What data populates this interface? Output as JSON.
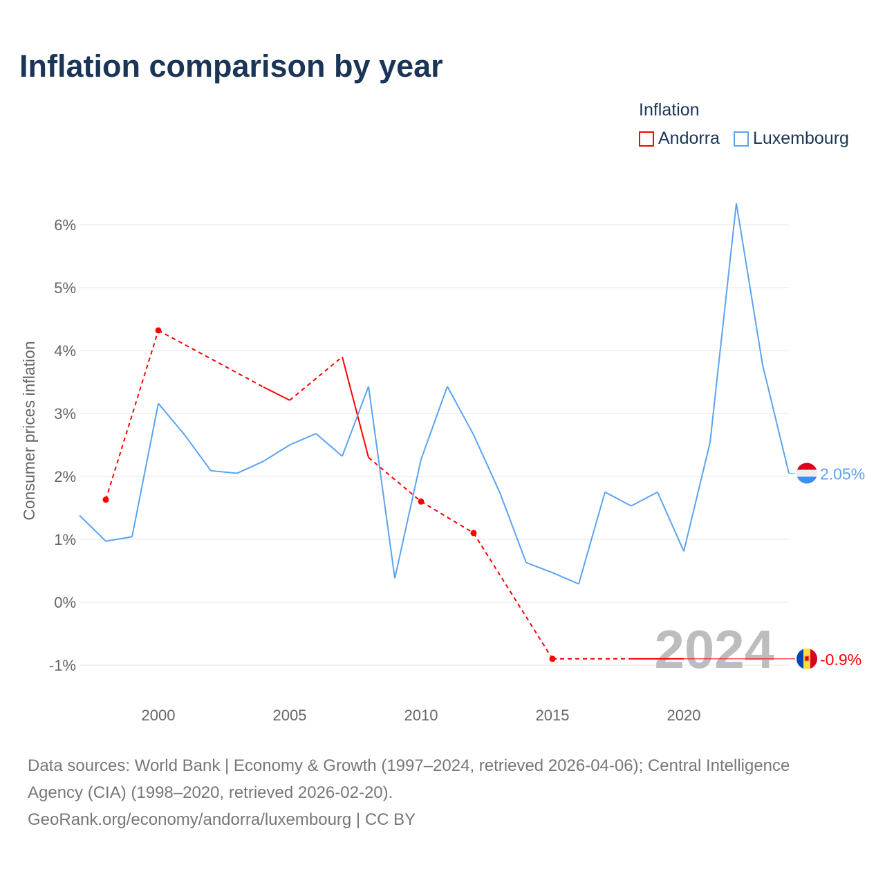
{
  "chart_data": {
    "type": "line",
    "title": "Inflation comparison by year",
    "ylabel": "Consumer prices inflation",
    "xlabel": "",
    "legend_title": "Inflation",
    "legend_position": "top-right",
    "ylim": [
      -1.3,
      6.6
    ],
    "xlim": [
      1997,
      2024
    ],
    "yticks": [
      -1,
      0,
      1,
      2,
      3,
      4,
      5,
      6
    ],
    "ytick_labels": [
      "-1%",
      "0%",
      "1%",
      "2%",
      "3%",
      "4%",
      "5%",
      "6%"
    ],
    "xticks": [
      2000,
      2005,
      2010,
      2015,
      2020
    ],
    "xtick_labels": [
      "2000",
      "2005",
      "2010",
      "2015",
      "2020"
    ],
    "grid": true,
    "year_watermark": "2024",
    "series": [
      {
        "name": "Andorra",
        "color": "#ff0000",
        "end_label": "-0.9%",
        "end_value": -0.9,
        "x": [
          1998,
          2000,
          2004,
          2005,
          2007,
          2008,
          2010,
          2012,
          2015,
          2018,
          2019,
          2020
        ],
        "y": [
          1.63,
          4.32,
          3.42,
          3.21,
          3.9,
          2.3,
          1.6,
          1.1,
          -0.9,
          -0.9,
          -0.9,
          -0.9
        ]
      },
      {
        "name": "Luxembourg",
        "color": "#5aa3f0",
        "end_label": "2.05%",
        "end_value": 2.05,
        "x": [
          1997,
          1998,
          1999,
          2000,
          2001,
          2002,
          2003,
          2004,
          2005,
          2006,
          2007,
          2008,
          2009,
          2010,
          2011,
          2012,
          2013,
          2014,
          2015,
          2016,
          2017,
          2018,
          2019,
          2020,
          2021,
          2022,
          2023,
          2024
        ],
        "y": [
          1.38,
          0.97,
          1.04,
          3.16,
          2.66,
          2.09,
          2.05,
          2.24,
          2.5,
          2.68,
          2.32,
          3.43,
          0.38,
          2.27,
          3.43,
          2.66,
          1.74,
          0.63,
          0.47,
          0.29,
          1.75,
          1.53,
          1.75,
          0.81,
          2.54,
          6.34,
          3.77,
          2.05
        ]
      }
    ]
  },
  "footer": {
    "line1": "Data sources: World Bank | Economy & Growth (1997–2024, retrieved 2026-04-06); Central Intelligence",
    "line2": "Agency (CIA) (1998–2020, retrieved 2026-02-20).",
    "line3": "GeoRank.org/economy/andorra/luxembourg | CC BY"
  }
}
